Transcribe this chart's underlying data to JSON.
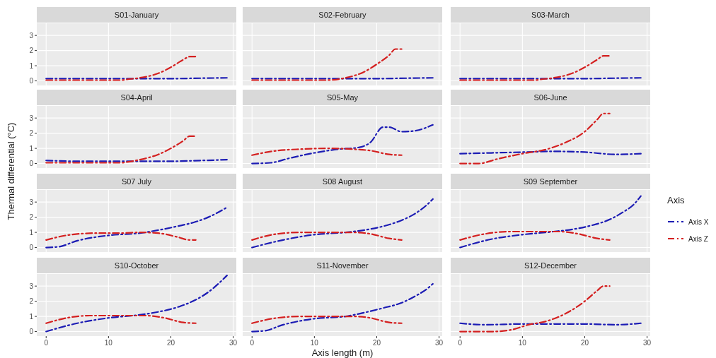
{
  "chart_data": [
    {
      "type": "line",
      "title": "S01-January",
      "xlim": [
        -1.5,
        30.5
      ],
      "ylim": [
        -0.3,
        3.8
      ],
      "xticks": [
        0,
        10,
        20,
        30
      ],
      "yticks": [
        0,
        1,
        2,
        3
      ],
      "grid": true,
      "line_style": "dashed",
      "tick_labels": "y",
      "series": [
        {
          "color": "#1c1cb4",
          "x": [
            0,
            5,
            10,
            15,
            20,
            25,
            29
          ],
          "values": [
            0.15,
            0.15,
            0.15,
            0.15,
            0.15,
            0.18,
            0.2
          ]
        },
        {
          "color": "#d42020",
          "x": [
            0,
            4,
            8,
            12,
            13,
            15,
            18,
            20,
            22,
            23,
            24
          ],
          "values": [
            0.05,
            0.05,
            0.05,
            0.05,
            0.1,
            0.2,
            0.5,
            0.9,
            1.4,
            1.6,
            1.6
          ]
        }
      ]
    },
    {
      "type": "line",
      "title": "S02-February",
      "xlim": [
        -1.5,
        30.5
      ],
      "ylim": [
        -0.3,
        3.8
      ],
      "xticks": [
        0,
        10,
        20,
        30
      ],
      "yticks": [
        0,
        1,
        2,
        3
      ],
      "grid": true,
      "line_style": "dashed",
      "tick_labels": false,
      "series": [
        {
          "color": "#1c1cb4",
          "x": [
            0,
            5,
            10,
            15,
            20,
            25,
            29
          ],
          "values": [
            0.15,
            0.15,
            0.15,
            0.15,
            0.15,
            0.18,
            0.2
          ]
        },
        {
          "color": "#d42020",
          "x": [
            0,
            4,
            8,
            12,
            15,
            18,
            20,
            22,
            23,
            24
          ],
          "values": [
            0.05,
            0.05,
            0.05,
            0.05,
            0.2,
            0.6,
            1.1,
            1.7,
            2.1,
            2.1
          ]
        }
      ]
    },
    {
      "type": "line",
      "title": "S03-March",
      "xlim": [
        -1.5,
        30.5
      ],
      "ylim": [
        -0.3,
        3.8
      ],
      "xticks": [
        0,
        10,
        20,
        30
      ],
      "yticks": [
        0,
        1,
        2,
        3
      ],
      "grid": true,
      "line_style": "dashed",
      "tick_labels": false,
      "series": [
        {
          "color": "#1c1cb4",
          "x": [
            0,
            5,
            10,
            15,
            20,
            25,
            29
          ],
          "values": [
            0.15,
            0.15,
            0.15,
            0.15,
            0.15,
            0.18,
            0.2
          ]
        },
        {
          "color": "#d42020",
          "x": [
            0,
            4,
            8,
            12,
            13,
            15,
            18,
            20,
            22,
            23,
            24
          ],
          "values": [
            0.05,
            0.05,
            0.05,
            0.05,
            0.1,
            0.2,
            0.5,
            0.9,
            1.4,
            1.65,
            1.65
          ]
        }
      ]
    },
    {
      "type": "line",
      "title": "S04-April",
      "xlim": [
        -1.5,
        30.5
      ],
      "ylim": [
        -0.3,
        3.8
      ],
      "xticks": [
        0,
        10,
        20,
        30
      ],
      "yticks": [
        0,
        1,
        2,
        3
      ],
      "grid": true,
      "line_style": "dashed",
      "tick_labels": "y",
      "series": [
        {
          "color": "#1c1cb4",
          "x": [
            0,
            5,
            10,
            15,
            20,
            25,
            29
          ],
          "values": [
            0.2,
            0.15,
            0.15,
            0.15,
            0.15,
            0.2,
            0.25
          ]
        },
        {
          "color": "#d42020",
          "x": [
            0,
            4,
            8,
            12,
            13,
            15,
            18,
            20,
            22,
            23,
            24
          ],
          "values": [
            0.05,
            0.05,
            0.05,
            0.05,
            0.1,
            0.25,
            0.6,
            1.0,
            1.5,
            1.8,
            1.8
          ]
        }
      ]
    },
    {
      "type": "line",
      "title": "S05-May",
      "xlim": [
        -1.5,
        30.5
      ],
      "ylim": [
        -0.3,
        3.8
      ],
      "xticks": [
        0,
        10,
        20,
        30
      ],
      "yticks": [
        0,
        1,
        2,
        3
      ],
      "grid": true,
      "line_style": "dashed",
      "tick_labels": false,
      "series": [
        {
          "color": "#1c1cb4",
          "x": [
            0,
            3,
            6,
            10,
            14,
            17,
            19,
            21,
            22,
            24,
            26,
            29
          ],
          "values": [
            0,
            0.05,
            0.35,
            0.7,
            0.95,
            1.05,
            1.4,
            2.4,
            2.4,
            2.1,
            2.15,
            2.55
          ]
        },
        {
          "color": "#d42020",
          "x": [
            0,
            4,
            8,
            12,
            16,
            19,
            22,
            24
          ],
          "values": [
            0.55,
            0.85,
            0.95,
            1.0,
            0.95,
            0.85,
            0.6,
            0.55
          ]
        }
      ]
    },
    {
      "type": "line",
      "title": "S06-June",
      "xlim": [
        -1.5,
        30.5
      ],
      "ylim": [
        -0.3,
        3.8
      ],
      "xticks": [
        0,
        10,
        20,
        30
      ],
      "yticks": [
        0,
        1,
        2,
        3
      ],
      "grid": true,
      "line_style": "dashed",
      "tick_labels": false,
      "legend": "right",
      "legend_title": "Axis",
      "series": [
        {
          "name": "Axis X",
          "color": "#1c1cb4",
          "x": [
            0,
            5,
            10,
            15,
            20,
            25,
            29
          ],
          "values": [
            0.65,
            0.7,
            0.75,
            0.8,
            0.75,
            0.6,
            0.65
          ]
        },
        {
          "name": "Axis Z",
          "color": "#d42020",
          "x": [
            0,
            3,
            6,
            10,
            14,
            17,
            20,
            22,
            23,
            24
          ],
          "values": [
            0,
            0,
            0.3,
            0.65,
            0.95,
            1.4,
            2.1,
            2.9,
            3.3,
            3.3
          ]
        }
      ]
    },
    {
      "type": "line",
      "title": "S07 July",
      "xlim": [
        -1.5,
        30.5
      ],
      "ylim": [
        -0.3,
        3.8
      ],
      "xticks": [
        0,
        10,
        20,
        30
      ],
      "yticks": [
        0,
        1,
        2,
        3
      ],
      "grid": true,
      "line_style": "dashed",
      "tick_labels": "y",
      "ylabel": "Thermal differential (°C)",
      "series": [
        {
          "color": "#1c1cb4",
          "x": [
            0,
            2,
            5,
            10,
            15,
            18,
            21,
            24,
            26,
            29
          ],
          "values": [
            0,
            0.05,
            0.45,
            0.8,
            0.95,
            1.15,
            1.4,
            1.7,
            2.0,
            2.65
          ]
        },
        {
          "color": "#d42020",
          "x": [
            0,
            4,
            8,
            12,
            15,
            18,
            21,
            23,
            24
          ],
          "values": [
            0.5,
            0.85,
            0.95,
            0.95,
            1.0,
            0.95,
            0.7,
            0.5,
            0.5
          ]
        }
      ]
    },
    {
      "type": "line",
      "title": "S08 August",
      "xlim": [
        -1.5,
        30.5
      ],
      "ylim": [
        -0.3,
        3.8
      ],
      "xticks": [
        0,
        10,
        20,
        30
      ],
      "yticks": [
        0,
        1,
        2,
        3
      ],
      "grid": true,
      "line_style": "dashed",
      "tick_labels": false,
      "series": [
        {
          "color": "#1c1cb4",
          "x": [
            0,
            5,
            10,
            15,
            18,
            21,
            24,
            26,
            28,
            29
          ],
          "values": [
            0,
            0.5,
            0.85,
            1.0,
            1.15,
            1.4,
            1.8,
            2.2,
            2.8,
            3.2
          ]
        },
        {
          "color": "#d42020",
          "x": [
            0,
            4,
            8,
            12,
            16,
            19,
            22,
            24
          ],
          "values": [
            0.5,
            0.9,
            1.0,
            1.0,
            1.0,
            0.9,
            0.6,
            0.5
          ]
        }
      ]
    },
    {
      "type": "line",
      "title": "S09 September",
      "xlim": [
        -1.5,
        30.5
      ],
      "ylim": [
        -0.3,
        3.8
      ],
      "xticks": [
        0,
        10,
        20,
        30
      ],
      "yticks": [
        0,
        1,
        2,
        3
      ],
      "grid": true,
      "line_style": "dashed",
      "tick_labels": false,
      "series": [
        {
          "color": "#1c1cb4",
          "x": [
            0,
            5,
            10,
            15,
            18,
            21,
            24,
            26,
            28,
            29
          ],
          "values": [
            0,
            0.55,
            0.85,
            1.05,
            1.2,
            1.45,
            1.85,
            2.3,
            2.9,
            3.4
          ]
        },
        {
          "color": "#d42020",
          "x": [
            0,
            4,
            8,
            12,
            16,
            19,
            22,
            24
          ],
          "values": [
            0.5,
            0.9,
            1.05,
            1.05,
            1.05,
            0.9,
            0.6,
            0.5
          ]
        }
      ]
    },
    {
      "type": "line",
      "title": "S10-October",
      "xlim": [
        -1.5,
        30.5
      ],
      "ylim": [
        -0.3,
        3.8
      ],
      "xticks": [
        0,
        10,
        20,
        30
      ],
      "yticks": [
        0,
        1,
        2,
        3
      ],
      "grid": true,
      "line_style": "dashed",
      "series": [
        {
          "color": "#1c1cb4",
          "x": [
            0,
            5,
            10,
            15,
            18,
            21,
            24,
            26,
            28,
            29
          ],
          "values": [
            0,
            0.55,
            0.9,
            1.1,
            1.3,
            1.6,
            2.1,
            2.6,
            3.3,
            3.7
          ]
        },
        {
          "color": "#d42020",
          "x": [
            0,
            4,
            7,
            12,
            16,
            19,
            22,
            24
          ],
          "values": [
            0.55,
            0.95,
            1.05,
            1.05,
            1.05,
            0.9,
            0.6,
            0.55
          ]
        }
      ]
    },
    {
      "type": "line",
      "title": "S11-November",
      "xlim": [
        -1.5,
        30.5
      ],
      "ylim": [
        -0.3,
        3.8
      ],
      "xticks": [
        0,
        10,
        20,
        30
      ],
      "yticks": [
        0,
        1,
        2,
        3
      ],
      "grid": true,
      "line_style": "dashed",
      "tick_labels": "x",
      "xlabel": "Axis length (m)",
      "series": [
        {
          "color": "#1c1cb4",
          "x": [
            0,
            2,
            5,
            10,
            15,
            18,
            21,
            24,
            26,
            28,
            29
          ],
          "values": [
            0,
            0.05,
            0.45,
            0.85,
            1.0,
            1.25,
            1.55,
            1.9,
            2.3,
            2.8,
            3.15
          ]
        },
        {
          "color": "#d42020",
          "x": [
            0,
            4,
            8,
            12,
            16,
            19,
            22,
            24
          ],
          "values": [
            0.55,
            0.9,
            1.0,
            1.0,
            1.0,
            0.9,
            0.6,
            0.55
          ]
        }
      ]
    },
    {
      "type": "line",
      "title": "S12-December",
      "xlim": [
        -1.5,
        30.5
      ],
      "ylim": [
        -0.3,
        3.8
      ],
      "xticks": [
        0,
        10,
        20,
        30
      ],
      "yticks": [
        0,
        1,
        2,
        3
      ],
      "grid": true,
      "line_style": "dashed",
      "tick_labels": "x",
      "series": [
        {
          "color": "#1c1cb4",
          "x": [
            0,
            4,
            10,
            15,
            20,
            25,
            29
          ],
          "values": [
            0.55,
            0.45,
            0.5,
            0.5,
            0.5,
            0.45,
            0.55
          ]
        },
        {
          "color": "#d42020",
          "x": [
            0,
            5,
            8,
            11,
            14,
            17,
            20,
            22,
            23,
            24
          ],
          "values": [
            0,
            0,
            0.1,
            0.45,
            0.7,
            1.2,
            2.0,
            2.7,
            3.0,
            3.0
          ]
        }
      ]
    }
  ]
}
